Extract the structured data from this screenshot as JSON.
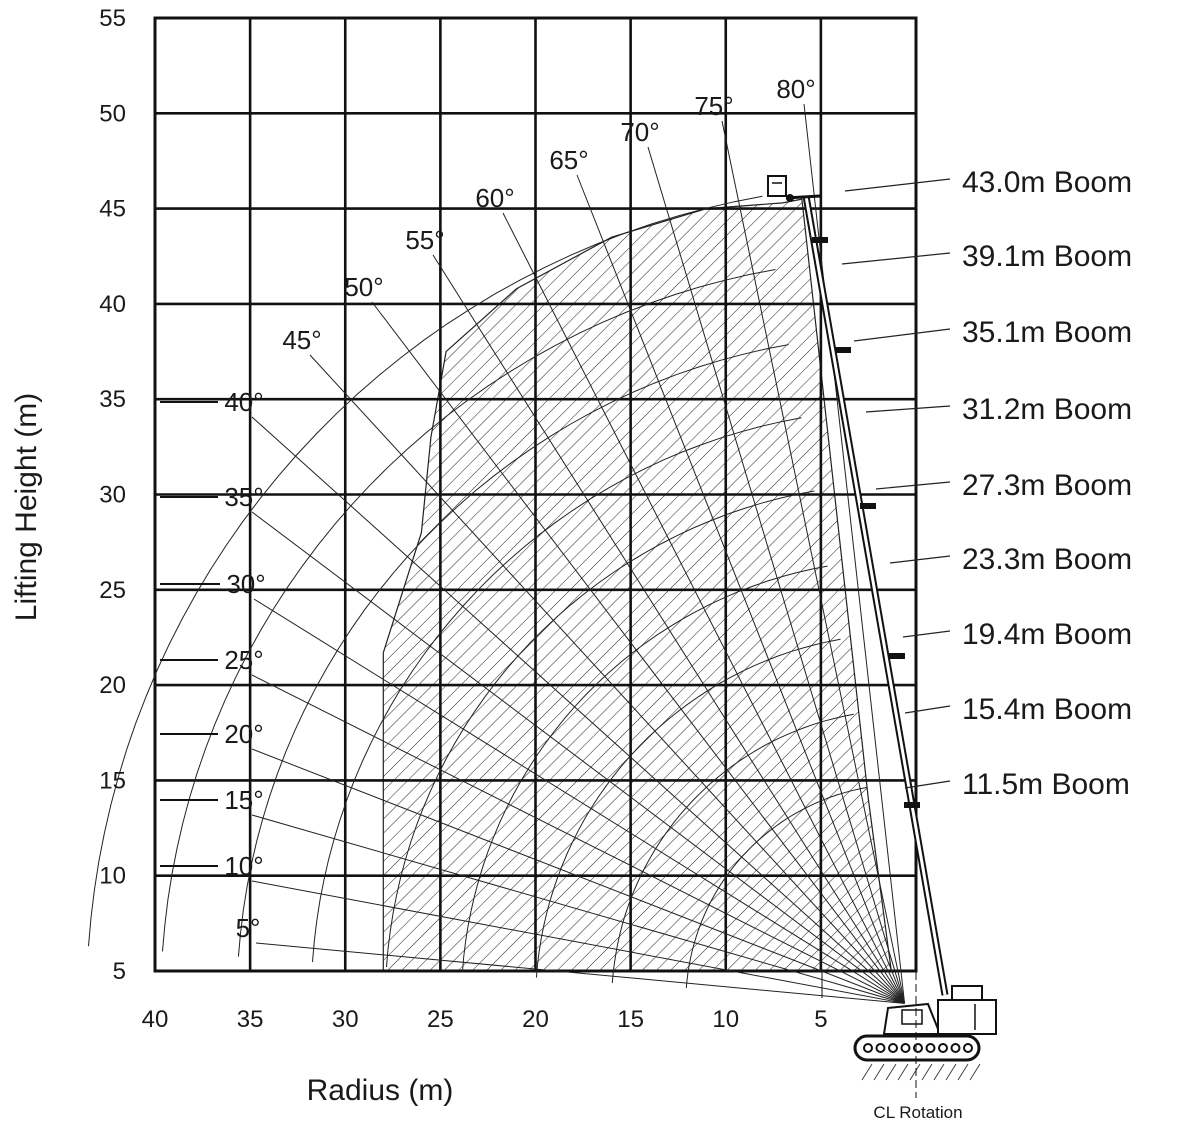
{
  "chart_data": {
    "type": "line",
    "xlabel": "Radius (m)",
    "ylabel": "Lifting Height (m)",
    "xlim": [
      0,
      40
    ],
    "ylim": [
      5,
      55
    ],
    "x_reversed": true,
    "grid": true,
    "x_ticks": [
      "40",
      "35",
      "30",
      "25",
      "20",
      "15",
      "10",
      "5"
    ],
    "y_ticks": [
      "55",
      "50",
      "45",
      "40",
      "35",
      "30",
      "25",
      "20",
      "15",
      "10",
      "5"
    ],
    "boom_pivot": {
      "x": 0.6,
      "y": 3.3
    },
    "boom_angles": [
      "5°",
      "10°",
      "15°",
      "20°",
      "25°",
      "30°",
      "35°",
      "40°",
      "45°",
      "50°",
      "55°",
      "60°",
      "65°",
      "70°",
      "75°",
      "80°"
    ],
    "boom_lengths": [
      "11.5m Boom",
      "15.4m Boom",
      "19.4m Boom",
      "23.3m Boom",
      "27.3m Boom",
      "31.2m Boom",
      "35.1m Boom",
      "39.1m Boom",
      "43.0m Boom"
    ],
    "working_envelope": [
      {
        "x": 28,
        "y": 5
      },
      {
        "x": 28,
        "y": 21.7
      },
      {
        "x": 26,
        "y": 28
      },
      {
        "x": 25.5,
        "y": 33
      },
      {
        "x": 24.7,
        "y": 37.5
      },
      {
        "x": 21,
        "y": 40.8
      },
      {
        "x": 16,
        "y": 43.5
      },
      {
        "x": 11,
        "y": 45
      },
      {
        "x": 7,
        "y": 45.3
      },
      {
        "x": 6,
        "y": 45.5
      },
      {
        "x": 2.5,
        "y": 14
      },
      {
        "x": 1.3,
        "y": 5
      }
    ],
    "annotation": "CL Rotation"
  }
}
